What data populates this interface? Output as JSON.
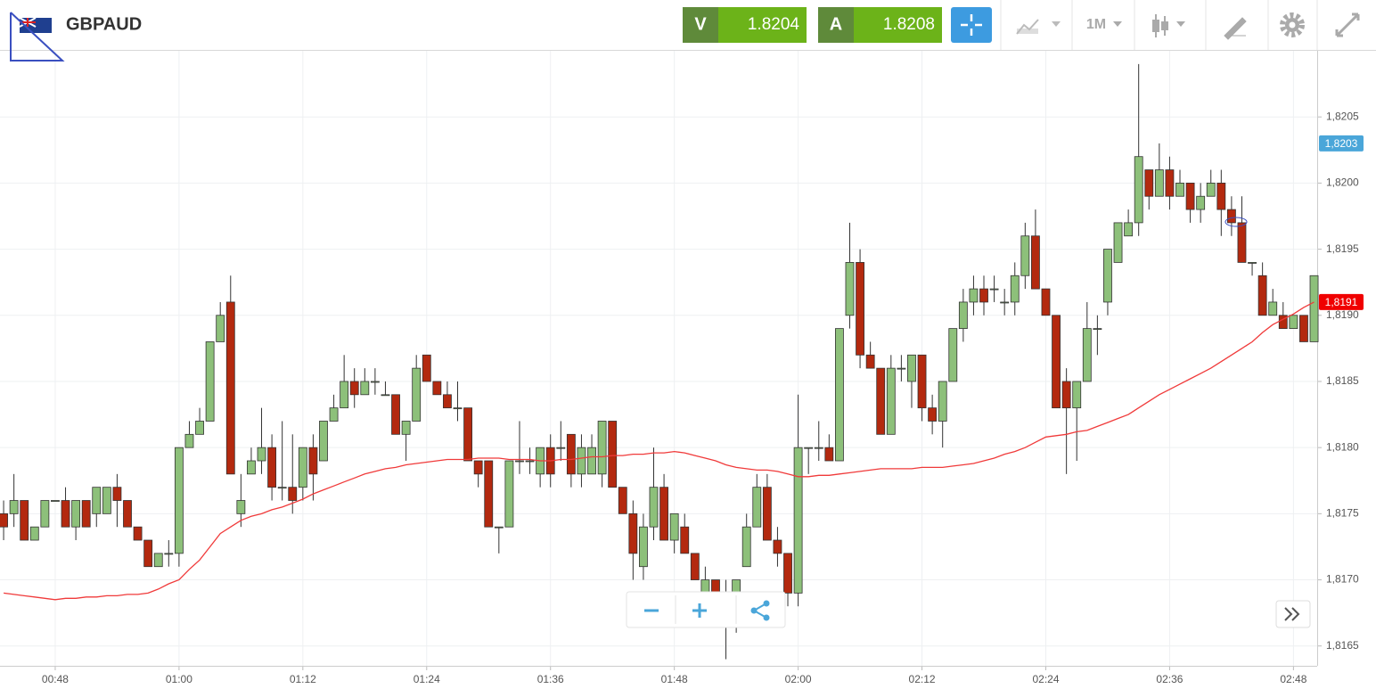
{
  "header": {
    "symbol": "GBPAUD",
    "sell": {
      "label": "V",
      "price": "1.8204"
    },
    "buy": {
      "label": "A",
      "price": "1.8208"
    },
    "timeframe": "1M"
  },
  "chart_data": {
    "type": "candlestick",
    "x": [
      43,
      44,
      45,
      46,
      47,
      48,
      49,
      50,
      51,
      52,
      53,
      54,
      55,
      56,
      57,
      58,
      59,
      60,
      61,
      62,
      63,
      64,
      65,
      66,
      67,
      68,
      69,
      70,
      71,
      72,
      73,
      74,
      75,
      76,
      77,
      78,
      79,
      80,
      81,
      82,
      83,
      84,
      85,
      86,
      87,
      88,
      89,
      90,
      91,
      92,
      93,
      94,
      95,
      96,
      97,
      98,
      99,
      100,
      101,
      102,
      103,
      104,
      105,
      106,
      107,
      108,
      109,
      110,
      111,
      112,
      113,
      114,
      115,
      116,
      117,
      118,
      119,
      120,
      121,
      122,
      123,
      124,
      125,
      126,
      127,
      128,
      129,
      130,
      131,
      132,
      133,
      134,
      135,
      136,
      137,
      138,
      139,
      140,
      141,
      142,
      143,
      144,
      145,
      146,
      147,
      148,
      149,
      150,
      151,
      152,
      153,
      154,
      155,
      156,
      157,
      158,
      159,
      160,
      161,
      162,
      163,
      164,
      165,
      166,
      167,
      168,
      169,
      170
    ],
    "ohlc": [
      [
        1.8175,
        1.8176,
        1.8173,
        1.8174
      ],
      [
        1.8175,
        1.8178,
        1.8174,
        1.8176
      ],
      [
        1.8176,
        1.8176,
        1.8173,
        1.8173
      ],
      [
        1.8173,
        1.8174,
        1.8173,
        1.8174
      ],
      [
        1.8174,
        1.8176,
        1.8174,
        1.8176
      ],
      [
        1.8176,
        1.8176,
        1.8176,
        1.8176
      ],
      [
        1.8176,
        1.8177,
        1.8174,
        1.8174
      ],
      [
        1.8174,
        1.8176,
        1.8173,
        1.8176
      ],
      [
        1.8176,
        1.8176,
        1.8174,
        1.8174
      ],
      [
        1.8175,
        1.8177,
        1.8174,
        1.8177
      ],
      [
        1.8175,
        1.8177,
        1.8175,
        1.8177
      ],
      [
        1.8177,
        1.8178,
        1.8174,
        1.8176
      ],
      [
        1.8176,
        1.8176,
        1.8174,
        1.8174
      ],
      [
        1.8174,
        1.8174,
        1.8173,
        1.8173
      ],
      [
        1.8173,
        1.8173,
        1.8171,
        1.8171
      ],
      [
        1.8171,
        1.8172,
        1.8171,
        1.8172
      ],
      [
        1.8172,
        1.8173,
        1.8171,
        1.8172
      ],
      [
        1.8172,
        1.818,
        1.8171,
        1.818
      ],
      [
        1.818,
        1.8182,
        1.818,
        1.8181
      ],
      [
        1.8181,
        1.8183,
        1.8181,
        1.8182
      ],
      [
        1.8182,
        1.8188,
        1.8182,
        1.8188
      ],
      [
        1.8188,
        1.8191,
        1.8188,
        1.819
      ],
      [
        1.8191,
        1.8193,
        1.8178,
        1.8178
      ],
      [
        1.8175,
        1.8178,
        1.8174,
        1.8176
      ],
      [
        1.8178,
        1.818,
        1.8178,
        1.8179
      ],
      [
        1.8179,
        1.8183,
        1.8178,
        1.818
      ],
      [
        1.818,
        1.8181,
        1.8176,
        1.8177
      ],
      [
        1.8177,
        1.8182,
        1.8176,
        1.8177
      ],
      [
        1.8177,
        1.8181,
        1.8175,
        1.8176
      ],
      [
        1.8177,
        1.818,
        1.8176,
        1.818
      ],
      [
        1.818,
        1.8181,
        1.8176,
        1.8178
      ],
      [
        1.8179,
        1.8182,
        1.8179,
        1.8182
      ],
      [
        1.8182,
        1.8184,
        1.8182,
        1.8183
      ],
      [
        1.8183,
        1.8187,
        1.8183,
        1.8185
      ],
      [
        1.8185,
        1.8186,
        1.8183,
        1.8184
      ],
      [
        1.8184,
        1.8186,
        1.8184,
        1.8185
      ],
      [
        1.8185,
        1.8186,
        1.8184,
        1.8185
      ],
      [
        1.8184,
        1.8185,
        1.8184,
        1.8184
      ],
      [
        1.8184,
        1.8184,
        1.8181,
        1.8181
      ],
      [
        1.8181,
        1.8182,
        1.8179,
        1.8182
      ],
      [
        1.8182,
        1.8187,
        1.8182,
        1.8186
      ],
      [
        1.8187,
        1.8187,
        1.8185,
        1.8185
      ],
      [
        1.8185,
        1.8185,
        1.8184,
        1.8184
      ],
      [
        1.8184,
        1.8185,
        1.8183,
        1.8183
      ],
      [
        1.8183,
        1.8185,
        1.8182,
        1.8183
      ],
      [
        1.8183,
        1.8183,
        1.8179,
        1.8179
      ],
      [
        1.8179,
        1.8179,
        1.8177,
        1.8178
      ],
      [
        1.8179,
        1.8179,
        1.8174,
        1.8174
      ],
      [
        1.8174,
        1.8174,
        1.8172,
        1.8174
      ],
      [
        1.8174,
        1.8179,
        1.8174,
        1.8179
      ],
      [
        1.8179,
        1.8182,
        1.8178,
        1.8179
      ],
      [
        1.8179,
        1.818,
        1.8178,
        1.8179
      ],
      [
        1.8178,
        1.818,
        1.8177,
        1.818
      ],
      [
        1.818,
        1.8181,
        1.8177,
        1.8178
      ],
      [
        1.818,
        1.8182,
        1.8179,
        1.818
      ],
      [
        1.8181,
        1.8181,
        1.8177,
        1.8178
      ],
      [
        1.8178,
        1.8181,
        1.8177,
        1.818
      ],
      [
        1.8178,
        1.8181,
        1.8178,
        1.818
      ],
      [
        1.8178,
        1.8182,
        1.8177,
        1.8182
      ],
      [
        1.8182,
        1.8182,
        1.8177,
        1.8177
      ],
      [
        1.8177,
        1.8177,
        1.8175,
        1.8175
      ],
      [
        1.8175,
        1.8176,
        1.817,
        1.8172
      ],
      [
        1.8171,
        1.8175,
        1.817,
        1.8174
      ],
      [
        1.8174,
        1.818,
        1.8173,
        1.8177
      ],
      [
        1.8177,
        1.8178,
        1.8173,
        1.8173
      ],
      [
        1.8173,
        1.8175,
        1.8172,
        1.8175
      ],
      [
        1.8174,
        1.8175,
        1.8172,
        1.8172
      ],
      [
        1.8172,
        1.8172,
        1.817,
        1.817
      ],
      [
        1.8169,
        1.8171,
        1.8169,
        1.817
      ],
      [
        1.817,
        1.817,
        1.8169,
        1.8169
      ],
      [
        1.8169,
        1.817,
        1.8164,
        1.8169
      ],
      [
        1.8169,
        1.817,
        1.8166,
        1.817
      ],
      [
        1.8171,
        1.8175,
        1.8171,
        1.8174
      ],
      [
        1.8174,
        1.8178,
        1.8174,
        1.8177
      ],
      [
        1.8177,
        1.8178,
        1.8173,
        1.8173
      ],
      [
        1.8173,
        1.8174,
        1.8171,
        1.8172
      ],
      [
        1.8172,
        1.8172,
        1.8168,
        1.8169
      ],
      [
        1.8169,
        1.8184,
        1.8168,
        1.818
      ],
      [
        1.818,
        1.818,
        1.8178,
        1.818
      ],
      [
        1.818,
        1.8182,
        1.8179,
        1.818
      ],
      [
        1.818,
        1.8181,
        1.8179,
        1.8179
      ],
      [
        1.8179,
        1.8189,
        1.8179,
        1.8189
      ],
      [
        1.819,
        1.8197,
        1.8189,
        1.8194
      ],
      [
        1.8194,
        1.8195,
        1.8186,
        1.8187
      ],
      [
        1.8187,
        1.8188,
        1.8186,
        1.8186
      ],
      [
        1.8186,
        1.8186,
        1.8181,
        1.8181
      ],
      [
        1.8181,
        1.8187,
        1.8181,
        1.8186
      ],
      [
        1.8186,
        1.8187,
        1.8185,
        1.8186
      ],
      [
        1.8185,
        1.8187,
        1.8183,
        1.8187
      ],
      [
        1.8187,
        1.8187,
        1.8182,
        1.8183
      ],
      [
        1.8183,
        1.8184,
        1.8181,
        1.8182
      ],
      [
        1.8182,
        1.8185,
        1.818,
        1.8185
      ],
      [
        1.8185,
        1.8189,
        1.8185,
        1.8189
      ],
      [
        1.8189,
        1.8192,
        1.8188,
        1.8191
      ],
      [
        1.8191,
        1.8193,
        1.819,
        1.8192
      ],
      [
        1.8192,
        1.8193,
        1.819,
        1.8191
      ],
      [
        1.8192,
        1.8193,
        1.8191,
        1.8192
      ],
      [
        1.8191,
        1.8192,
        1.819,
        1.8191
      ],
      [
        1.8191,
        1.8194,
        1.819,
        1.8193
      ],
      [
        1.8193,
        1.8197,
        1.8192,
        1.8196
      ],
      [
        1.8196,
        1.8198,
        1.8192,
        1.8192
      ],
      [
        1.8192,
        1.8192,
        1.819,
        1.819
      ],
      [
        1.819,
        1.819,
        1.8183,
        1.8183
      ],
      [
        1.8185,
        1.8186,
        1.8178,
        1.8183
      ],
      [
        1.8183,
        1.8185,
        1.8179,
        1.8185
      ],
      [
        1.8185,
        1.8191,
        1.8185,
        1.8189
      ],
      [
        1.8189,
        1.819,
        1.8187,
        1.8189
      ],
      [
        1.8191,
        1.8195,
        1.819,
        1.8195
      ],
      [
        1.8194,
        1.8197,
        1.8194,
        1.8197
      ],
      [
        1.8196,
        1.8198,
        1.8196,
        1.8197
      ],
      [
        1.8197,
        1.8209,
        1.8196,
        1.8202
      ],
      [
        1.8201,
        1.8201,
        1.8198,
        1.8199
      ],
      [
        1.8199,
        1.8203,
        1.8199,
        1.8201
      ],
      [
        1.8201,
        1.8202,
        1.8198,
        1.8199
      ],
      [
        1.8199,
        1.8201,
        1.8199,
        1.82
      ],
      [
        1.82,
        1.82,
        1.8197,
        1.8198
      ],
      [
        1.8198,
        1.82,
        1.8197,
        1.8199
      ],
      [
        1.8199,
        1.8201,
        1.8199,
        1.82
      ],
      [
        1.82,
        1.8201,
        1.8196,
        1.8198
      ],
      [
        1.8198,
        1.8199,
        1.8196,
        1.8197
      ],
      [
        1.8197,
        1.8199,
        1.8194,
        1.8194
      ],
      [
        1.8194,
        1.8194,
        1.8193,
        1.8194
      ],
      [
        1.8193,
        1.8194,
        1.819,
        1.819
      ],
      [
        1.819,
        1.8192,
        1.819,
        1.8191
      ],
      [
        1.819,
        1.8191,
        1.8189,
        1.8189
      ],
      [
        1.8189,
        1.819,
        1.8189,
        1.819
      ],
      [
        1.819,
        1.819,
        1.8188,
        1.8188
      ],
      [
        1.8188,
        1.8193,
        1.8188,
        1.8193
      ]
    ],
    "up_color": "#8dc07a",
    "down_color": "#b3290f",
    "ma": {
      "color": "#f03a3a",
      "values": [
        1.8169,
        1.81689,
        1.81688,
        1.81687,
        1.81686,
        1.81685,
        1.81686,
        1.81686,
        1.81687,
        1.81687,
        1.81688,
        1.81688,
        1.81689,
        1.81689,
        1.8169,
        1.81693,
        1.81697,
        1.817,
        1.81708,
        1.81715,
        1.81725,
        1.81735,
        1.8174,
        1.81745,
        1.81748,
        1.8175,
        1.81753,
        1.81755,
        1.81758,
        1.81761,
        1.81765,
        1.81768,
        1.81771,
        1.81774,
        1.81777,
        1.8178,
        1.81782,
        1.81784,
        1.81785,
        1.81787,
        1.81788,
        1.81789,
        1.8179,
        1.81791,
        1.81791,
        1.81791,
        1.81792,
        1.81792,
        1.81792,
        1.81791,
        1.81791,
        1.81791,
        1.8179,
        1.8179,
        1.81791,
        1.81791,
        1.81792,
        1.81793,
        1.81793,
        1.81794,
        1.81794,
        1.81795,
        1.81795,
        1.81796,
        1.81796,
        1.81797,
        1.81796,
        1.81794,
        1.81792,
        1.8179,
        1.81787,
        1.81785,
        1.81784,
        1.81783,
        1.81783,
        1.81782,
        1.8178,
        1.81778,
        1.81778,
        1.81779,
        1.81779,
        1.8178,
        1.81781,
        1.81782,
        1.81783,
        1.81784,
        1.81784,
        1.81784,
        1.81784,
        1.81785,
        1.81785,
        1.81785,
        1.81786,
        1.81787,
        1.81788,
        1.8179,
        1.81792,
        1.81795,
        1.81797,
        1.818,
        1.81804,
        1.81808,
        1.81809,
        1.8181,
        1.81812,
        1.81813,
        1.81816,
        1.81819,
        1.81822,
        1.81825,
        1.8183,
        1.81835,
        1.8184,
        1.81844,
        1.81848,
        1.81852,
        1.81856,
        1.8186,
        1.81865,
        1.8187,
        1.81875,
        1.8188,
        1.81887,
        1.81893,
        1.81897,
        1.81901,
        1.81906,
        1.8191
      ]
    },
    "xlim": [
      42.65,
      170.3
    ],
    "xticks": [
      {
        "value": 48,
        "label": "00:48"
      },
      {
        "value": 60,
        "label": "01:00"
      },
      {
        "value": 72,
        "label": "01:12"
      },
      {
        "value": 84,
        "label": "01:24"
      },
      {
        "value": 96,
        "label": "01:36"
      },
      {
        "value": 108,
        "label": "01:48"
      },
      {
        "value": 120,
        "label": "02:00"
      },
      {
        "value": 132,
        "label": "02:12"
      },
      {
        "value": 144,
        "label": "02:24"
      },
      {
        "value": 156,
        "label": "02:36"
      },
      {
        "value": 168,
        "label": "02:48"
      }
    ],
    "ylim": [
      1.81635,
      1.821
    ],
    "yticks": [
      {
        "value": 1.8165,
        "label": "1,8165"
      },
      {
        "value": 1.817,
        "label": "1,8170"
      },
      {
        "value": 1.8175,
        "label": "1,8175"
      },
      {
        "value": 1.818,
        "label": "1,8180"
      },
      {
        "value": 1.8185,
        "label": "1,8185"
      },
      {
        "value": 1.819,
        "label": "1,8190"
      },
      {
        "value": 1.8195,
        "label": "1,8195"
      },
      {
        "value": 1.82,
        "label": "1,8200"
      },
      {
        "value": 1.8205,
        "label": "1,8205"
      }
    ],
    "price_tags": [
      {
        "value": 1.8203,
        "label": "1,8203",
        "color": "#4aa6d9"
      },
      {
        "value": 1.8191,
        "label": "1,8191",
        "color": "#f00000"
      }
    ],
    "grid": true
  }
}
